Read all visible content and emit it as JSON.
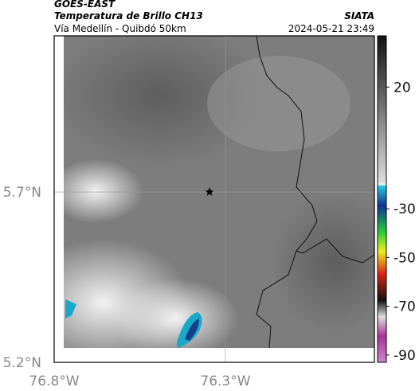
{
  "header": {
    "source": "GOES-EAST",
    "product": "Temperatura de Brillo CH13",
    "region": "Vía Medellín - Quibdó 50km",
    "brand": "SIATA",
    "timestamp": "2024-05-21 23:49"
  },
  "chart_data": {
    "type": "map",
    "xlim": [
      -76.8,
      -75.865
    ],
    "ylim": [
      5.2,
      6.158
    ],
    "xticks": [
      {
        "value": -76.8,
        "label": "76.8°W"
      },
      {
        "value": -76.3,
        "label": "76.3°W"
      }
    ],
    "yticks": [
      {
        "value": 5.2,
        "label": "5.2°N"
      },
      {
        "value": 5.7,
        "label": "5.7°N"
      }
    ],
    "grid": true,
    "colorbar": {
      "lim": [
        -93,
        41
      ],
      "ticks": [
        20,
        -30,
        -50,
        -70,
        -90
      ]
    }
  }
}
